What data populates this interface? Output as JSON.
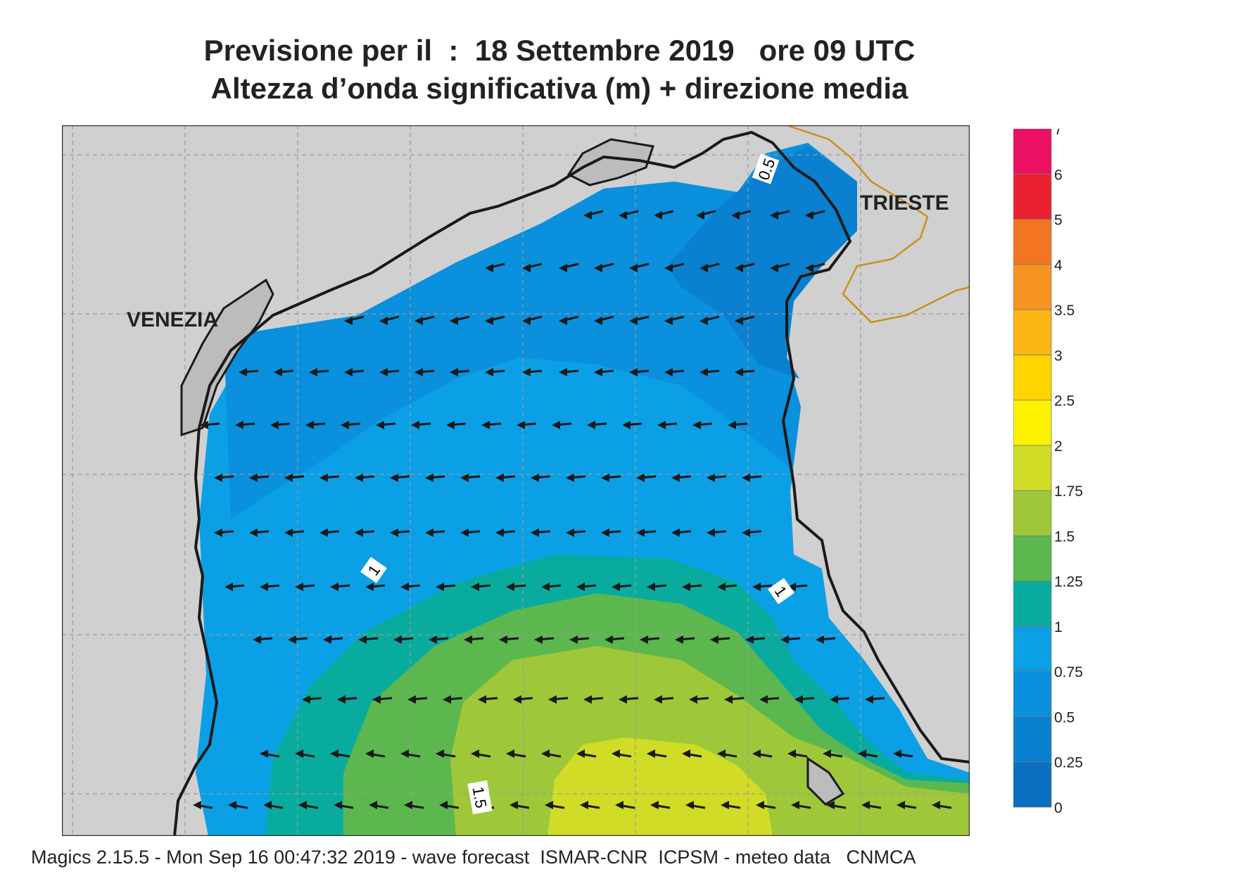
{
  "title_line1": "Previsione per il  :  18 Settembre 2019   ore 09 UTC",
  "title_line2": "Altezza d’onda significativa (m) + direzione media",
  "places": {
    "venezia": "VENEZIA",
    "trieste": "TRIESTE"
  },
  "contour_labels": [
    "0.5",
    "1",
    "1",
    "1.5"
  ],
  "legend": {
    "levels": [
      "0",
      "0.25",
      "0.5",
      "0.75",
      "1",
      "1.25",
      "1.5",
      "1.75",
      "2",
      "2.5",
      "3",
      "3.5",
      "4",
      "5",
      "6",
      "7"
    ],
    "colors": [
      "#0a6fc0",
      "#0980d0",
      "#0a90dc",
      "#0ba0e6",
      "#0aab9f",
      "#5cb84e",
      "#9ec83a",
      "#d0dc26",
      "#fff200",
      "#ffd500",
      "#fbb515",
      "#f79421",
      "#f47521",
      "#ea2131",
      "#ec1163"
    ]
  },
  "colors": {
    "land": "#d0d0d0",
    "coast": "#1a1a1a",
    "grid": "#9a9a9a",
    "border": "#c8901c"
  },
  "wave_direction": "arrows pointing west, slightly south-west",
  "footer": "Magics 2.15.5 - Mon Sep 16 00:47:32 2019 - wave forecast  ISMAR-CNR  ICPSM - meteo data   CNMCA"
}
